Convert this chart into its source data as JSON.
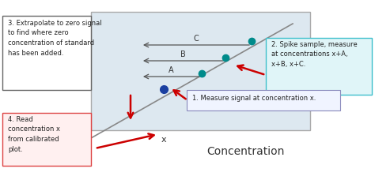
{
  "bg_color": "#ffffff",
  "inner_box_color": "#dde8f0",
  "inner_box_ec": "#aaaaaa",
  "line_color": "#888888",
  "origin_dot_color": "#1a3fa0",
  "spike_dot_color": "#008B8B",
  "arrow_color": "#cc0000",
  "abc_arrow_color": "#555555",
  "box1_text": "3. Extrapolate to zero signal\nto find where zero\nconcentration of standard\nhas been added.",
  "box1_fc": "#ffffff",
  "box1_ec": "#666666",
  "box2_text": "2. Spike sample, measure\nat concentrations x+A,\nx+B, x+C.",
  "box2_fc": "#e0f5f8",
  "box2_ec": "#40c0cc",
  "box3_text": "1. Measure signal at concentration x.",
  "box3_fc": "#f0f4ff",
  "box3_ec": "#8888bb",
  "box4_text": "4. Read\nconcentration x\nfrom calibrated\nplot.",
  "box4_fc": "#fff0f0",
  "box4_ec": "#dd4444"
}
